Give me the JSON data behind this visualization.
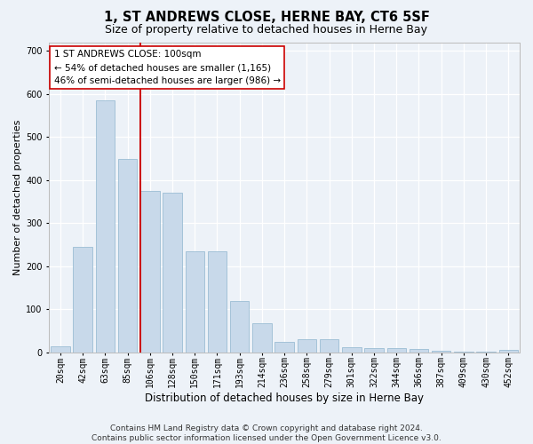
{
  "title": "1, ST ANDREWS CLOSE, HERNE BAY, CT6 5SF",
  "subtitle": "Size of property relative to detached houses in Herne Bay",
  "xlabel": "Distribution of detached houses by size in Herne Bay",
  "ylabel": "Number of detached properties",
  "footer_line1": "Contains HM Land Registry data © Crown copyright and database right 2024.",
  "footer_line2": "Contains public sector information licensed under the Open Government Licence v3.0.",
  "categories": [
    "20sqm",
    "42sqm",
    "63sqm",
    "85sqm",
    "106sqm",
    "128sqm",
    "150sqm",
    "171sqm",
    "193sqm",
    "214sqm",
    "236sqm",
    "258sqm",
    "279sqm",
    "301sqm",
    "322sqm",
    "344sqm",
    "366sqm",
    "387sqm",
    "409sqm",
    "430sqm",
    "452sqm"
  ],
  "values": [
    15,
    245,
    585,
    450,
    375,
    370,
    235,
    235,
    120,
    68,
    25,
    30,
    30,
    12,
    10,
    10,
    8,
    5,
    3,
    2,
    6
  ],
  "bar_color": "#c8d9ea",
  "bar_edge_color": "#9bbdd4",
  "vline_color": "#cc0000",
  "vline_x": 3.575,
  "annotation_line1": "1 ST ANDREWS CLOSE: 100sqm",
  "annotation_line2": "← 54% of detached houses are smaller (1,165)",
  "annotation_line3": "46% of semi-detached houses are larger (986) →",
  "annotation_box_facecolor": "#ffffff",
  "annotation_box_edgecolor": "#cc0000",
  "ylim": [
    0,
    720
  ],
  "yticks": [
    0,
    100,
    200,
    300,
    400,
    500,
    600,
    700
  ],
  "bg_color": "#edf2f8",
  "grid_color": "#ffffff",
  "title_fontsize": 10.5,
  "subtitle_fontsize": 9,
  "ylabel_fontsize": 8,
  "xlabel_fontsize": 8.5,
  "tick_fontsize": 7,
  "footer_fontsize": 6.5,
  "ann_fontsize": 7.5
}
